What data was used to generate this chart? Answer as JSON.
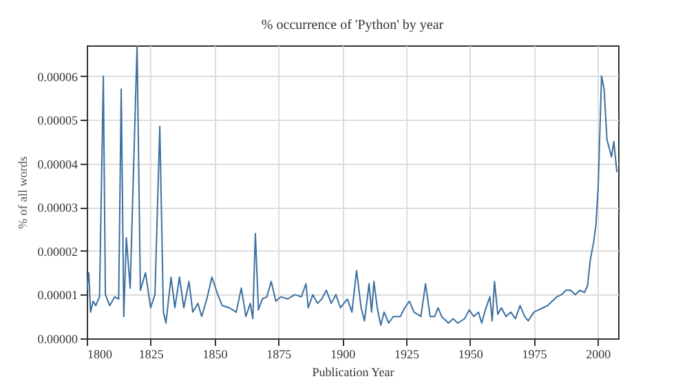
{
  "chart_data": {
    "type": "line",
    "title": "% occurrence of 'Python' by year",
    "xlabel": "Publication Year",
    "ylabel": "% of all words",
    "x": [
      1800,
      1800.8,
      1801.5,
      1802.5,
      1803.5,
      1805,
      1806.5,
      1807.3,
      1809,
      1811,
      1812.5,
      1813.5,
      1814.5,
      1815.5,
      1817,
      1819.7,
      1821,
      1823,
      1825,
      1826.7,
      1828.6,
      1830,
      1831,
      1833,
      1834.5,
      1836.3,
      1838,
      1840,
      1841.5,
      1843.5,
      1845,
      1847,
      1849,
      1851.3,
      1853,
      1855.8,
      1858.5,
      1860.5,
      1862.3,
      1864,
      1865,
      1866,
      1867.2,
      1868.7,
      1870.5,
      1872.2,
      1874,
      1876,
      1878.7,
      1881.4,
      1884,
      1885.8,
      1886.7,
      1888.5,
      1890.3,
      1892,
      1893.8,
      1895.7,
      1897.5,
      1899.3,
      1902,
      1903.8,
      1905.6,
      1907.4,
      1908.7,
      1910.5,
      1911.5,
      1912.4,
      1913.7,
      1915.1,
      1916.4,
      1918.2,
      1920,
      1922.7,
      1924.5,
      1926.3,
      1928.1,
      1930.8,
      1932.6,
      1934.4,
      1936.2,
      1937.5,
      1938.9,
      1941.6,
      1943.4,
      1945.2,
      1947.9,
      1949.7,
      1951.5,
      1953.3,
      1954.6,
      1956,
      1957.8,
      1958.7,
      1959.6,
      1960.9,
      1962.3,
      1964.1,
      1966,
      1967.8,
      1969.6,
      1971.4,
      1972.8,
      1975,
      1976.8,
      1978.6,
      1980.4,
      1982.2,
      1984,
      1985.8,
      1987.6,
      1989.4,
      1991.2,
      1993,
      1994.8,
      1996,
      1997.1,
      1998.4,
      1999.3,
      2000.2,
      2001.5,
      2002.5,
      2003.6,
      2005.4,
      2006.3,
      2007.5
    ],
    "series": [
      {
        "color": "#3b6fa0",
        "values": [
          1.1e-05,
          1.5e-05,
          6e-06,
          8.5e-06,
          7.5e-06,
          9.5e-06,
          6e-05,
          1e-05,
          7.5e-06,
          9.5e-06,
          9e-06,
          5.7e-05,
          5e-06,
          2.3e-05,
          1.15e-05,
          6.7e-05,
          1.1e-05,
          1.5e-05,
          7e-06,
          1e-05,
          4.85e-05,
          6e-06,
          3.5e-06,
          1.4e-05,
          7e-06,
          1.4e-05,
          7e-06,
          1.3e-05,
          6e-06,
          8e-06,
          5e-06,
          9e-06,
          1.4e-05,
          1e-05,
          7.5e-06,
          7e-06,
          6e-06,
          1.15e-05,
          5e-06,
          8e-06,
          4.5e-06,
          2.4e-05,
          6.5e-06,
          9e-06,
          9.5e-06,
          1.3e-05,
          8.5e-06,
          9.5e-06,
          9e-06,
          1e-05,
          9.5e-06,
          1.25e-05,
          7e-06,
          1e-05,
          8e-06,
          9e-06,
          1.1e-05,
          8e-06,
          1e-05,
          7e-06,
          9e-06,
          6e-06,
          1.55e-05,
          7e-06,
          4e-06,
          1.25e-05,
          6e-06,
          1.3e-05,
          7e-06,
          3e-06,
          6e-06,
          3.5e-06,
          5e-06,
          5e-06,
          7e-06,
          8.5e-06,
          6e-06,
          5e-06,
          1.25e-05,
          5e-06,
          5e-06,
          7e-06,
          5e-06,
          3.5e-06,
          4.5e-06,
          3.5e-06,
          4.5e-06,
          6.5e-06,
          5e-06,
          6e-06,
          3.5e-06,
          6.5e-06,
          9.5e-06,
          4e-06,
          1.3e-05,
          5.5e-06,
          7e-06,
          5e-06,
          6e-06,
          4.5e-06,
          7.5e-06,
          5e-06,
          4e-06,
          6e-06,
          6.5e-06,
          7e-06,
          7.5e-06,
          8.5e-06,
          9.5e-06,
          1e-05,
          1.1e-05,
          1.1e-05,
          1e-05,
          1.1e-05,
          1.05e-05,
          1.2e-05,
          1.8e-05,
          2.2e-05,
          2.6e-05,
          3.5e-05,
          6e-05,
          5.7e-05,
          4.55e-05,
          4.15e-05,
          4.5e-05,
          3.8e-05
        ]
      }
    ],
    "xlim": [
      1800,
      2008
    ],
    "xticks": [
      1800,
      1825,
      1850,
      1875,
      1900,
      1925,
      1950,
      1975,
      2000
    ],
    "ylim": [
      0,
      6.7e-05
    ],
    "yticks": [
      {
        "value": 0,
        "label": "0.00000"
      },
      {
        "value": 1e-05,
        "label": "0.00001"
      },
      {
        "value": 2e-05,
        "label": "0.00002"
      },
      {
        "value": 3e-05,
        "label": "0.00003"
      },
      {
        "value": 4e-05,
        "label": "0.00004"
      },
      {
        "value": 5e-05,
        "label": "0.00005"
      },
      {
        "value": 6e-05,
        "label": "0.00006"
      }
    ],
    "grid": true
  }
}
